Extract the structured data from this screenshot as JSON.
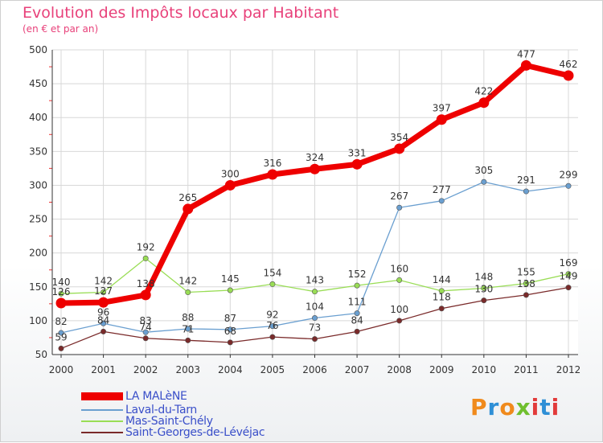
{
  "header": {
    "title": "Evolution des Impôts locaux par Habitant",
    "subtitle": "(en € et par an)"
  },
  "logo": {
    "text": "Proxiti",
    "colors": [
      "#f08a1c",
      "#2e8fd6",
      "#f08a1c",
      "#6fbf2e",
      "#e23a3a",
      "#2e8fd6",
      "#e23a3a"
    ]
  },
  "chart_data": {
    "type": "line",
    "title": "Evolution des Impôts locaux par Habitant",
    "subtitle": "(en € et par an)",
    "xlabel": "",
    "ylabel": "",
    "x": [
      "2000",
      "2001",
      "2002",
      "2003",
      "2004",
      "2005",
      "2006",
      "2007",
      "2008",
      "2009",
      "2010",
      "2011",
      "2012"
    ],
    "ylim": [
      50,
      500
    ],
    "yticks": [
      "50",
      "100",
      "150",
      "200",
      "250",
      "300",
      "350",
      "400",
      "450",
      "500"
    ],
    "grid": true,
    "legend_position": "bottom-left",
    "series": [
      {
        "name": "LA MALèNE",
        "color": "#ee0000",
        "values": [
          126,
          127,
          138,
          265,
          300,
          316,
          324,
          331,
          354,
          397,
          422,
          477,
          462
        ]
      },
      {
        "name": "Laval-du-Tarn",
        "color": "#6a9fd0",
        "values": [
          82,
          96,
          83,
          88,
          87,
          92,
          104,
          111,
          267,
          277,
          305,
          291,
          299
        ]
      },
      {
        "name": "Mas-Saint-Chély",
        "color": "#99dd55",
        "values": [
          140,
          142,
          192,
          142,
          145,
          154,
          143,
          152,
          160,
          144,
          148,
          155,
          169
        ]
      },
      {
        "name": "Saint-Georges-de-Lévéjac",
        "color": "#7a2a2a",
        "values": [
          59,
          84,
          74,
          71,
          68,
          76,
          73,
          84,
          100,
          118,
          130,
          138,
          149
        ]
      }
    ]
  }
}
